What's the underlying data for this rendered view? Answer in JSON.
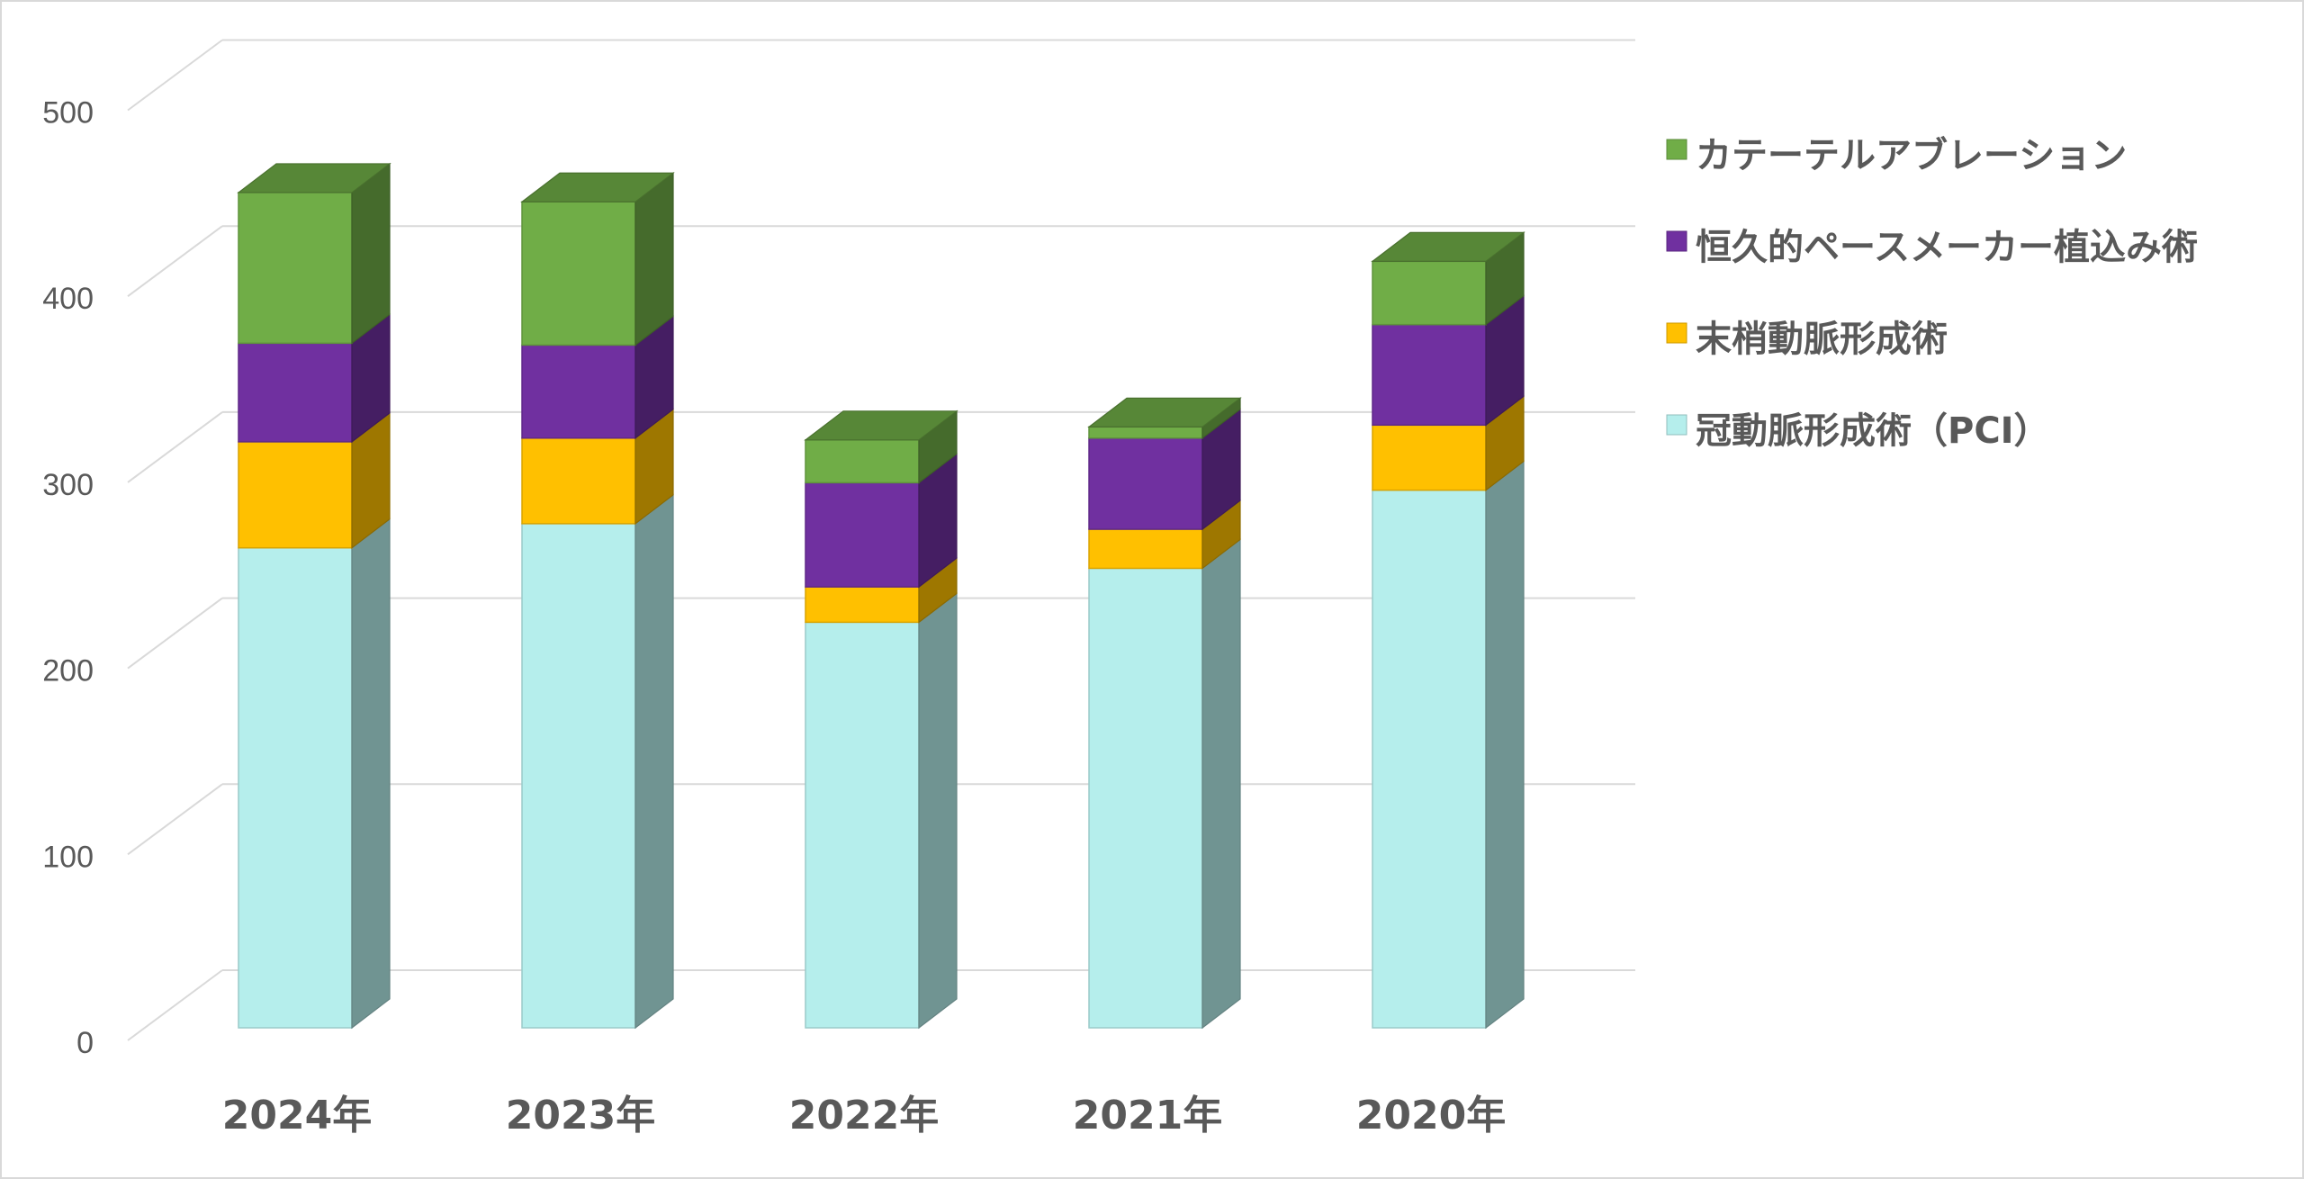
{
  "chart_data": {
    "type": "bar",
    "stacked": true,
    "style": "3d-column",
    "categories": [
      "2024年",
      "2023年",
      "2022年",
      "2021年",
      "2020年"
    ],
    "series": [
      {
        "name": "冠動脈形成術（PCI）",
        "values": [
          258,
          271,
          218,
          247,
          289
        ],
        "color": "#b5eeec"
      },
      {
        "name": "末梢動脈形成術",
        "values": [
          57,
          46,
          19,
          21,
          35
        ],
        "color": "#ffc000"
      },
      {
        "name": "恒久的ペースメーカー植込み術",
        "values": [
          53,
          50,
          56,
          49,
          54
        ],
        "color": "#7030a0"
      },
      {
        "name": "カテーテルアブレーション",
        "values": [
          81,
          77,
          23,
          6,
          34
        ],
        "color": "#70ad47"
      }
    ],
    "ylim": [
      0,
      500
    ],
    "yticks": [
      0,
      100,
      200,
      300,
      400,
      500
    ],
    "grid": true,
    "legend_position": "right",
    "title": "",
    "xlabel": "",
    "ylabel": ""
  }
}
